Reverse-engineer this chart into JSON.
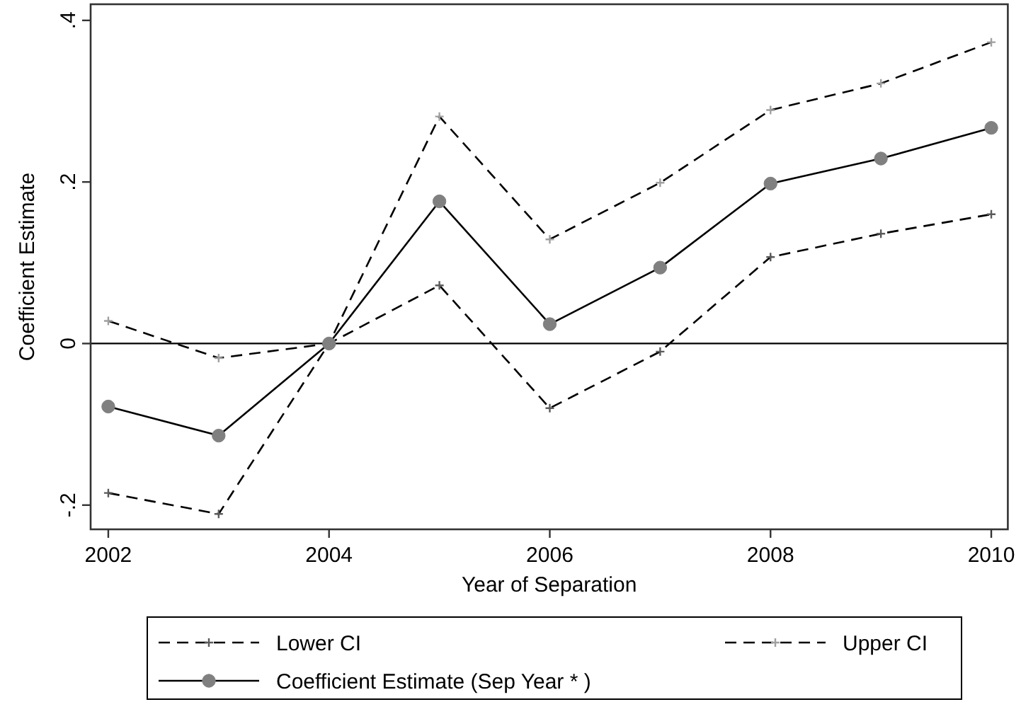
{
  "chart_data": {
    "type": "line",
    "xlabel": "Year of Separation",
    "ylabel": "Coefficient Estimate",
    "x": [
      2002,
      2003,
      2004,
      2005,
      2006,
      2007,
      2008,
      2009,
      2010
    ],
    "series": [
      {
        "name": "Lower CI",
        "color": "#000000",
        "line_style": "dashed",
        "marker": "cross",
        "values": [
          -0.185,
          -0.211,
          0,
          0.072,
          -0.08,
          -0.01,
          0.107,
          0.136,
          0.16
        ]
      },
      {
        "name": "Upper CI",
        "color": "#000000",
        "line_style": "dashed",
        "marker": "cross",
        "values": [
          0.028,
          -0.018,
          0,
          0.281,
          0.129,
          0.199,
          0.289,
          0.322,
          0.373
        ]
      },
      {
        "name": "Coefficient Estimate (Sep Year * )",
        "color": "#000000",
        "line_style": "solid",
        "marker": "circle",
        "values": [
          -0.078,
          -0.114,
          0,
          0.176,
          0.024,
          0.094,
          0.198,
          0.229,
          0.267
        ]
      }
    ],
    "xlim": [
      2001.84,
      2010.15
    ],
    "ylim": [
      -0.23,
      0.42
    ],
    "xticks": [
      2002,
      2004,
      2006,
      2008,
      2010
    ],
    "yticks": [
      {
        "value": -0.2,
        "label": "-.2"
      },
      0,
      {
        "value": 0.2,
        "label": ".2"
      },
      {
        "value": 0.4,
        "label": ".4"
      }
    ],
    "ref_lines": [
      {
        "axis": "y",
        "value": 0,
        "color": "#000000"
      }
    ],
    "grid": false,
    "legend": "bottom"
  }
}
